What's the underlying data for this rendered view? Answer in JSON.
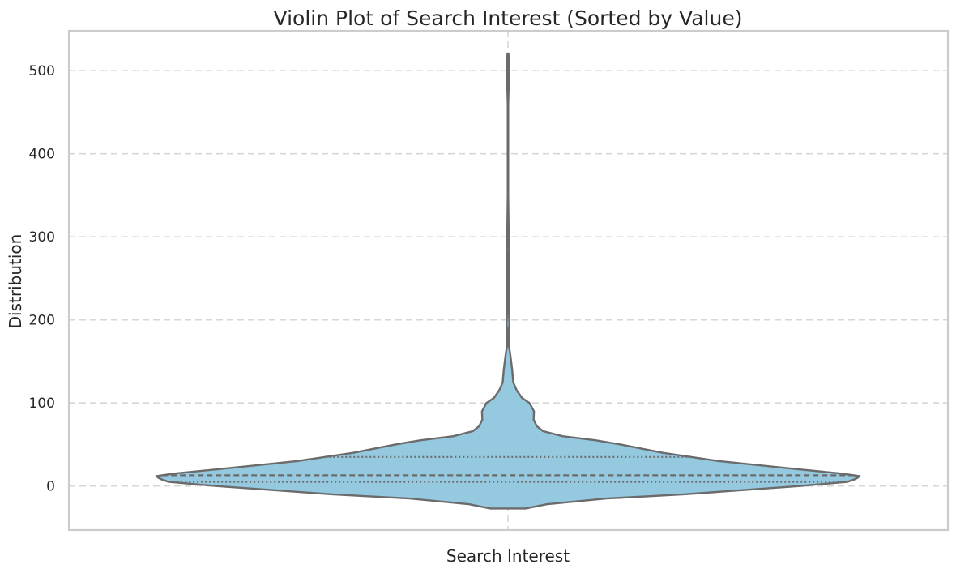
{
  "chart_data": {
    "type": "violin",
    "title": "Violin Plot of Search Interest (Sorted by Value)",
    "xlabel": "Search Interest",
    "ylabel": "Distribution",
    "categories": [
      "Search Interest"
    ],
    "ylim": [
      -53,
      548
    ],
    "yticks": [
      0,
      100,
      200,
      300,
      400,
      500
    ],
    "grid": true,
    "grid_style": "dashed",
    "colors": {
      "fill": "#95c9e0",
      "edge": "#6b6b6b",
      "grid": "#d7d7d7",
      "frame": "#cccccc"
    },
    "quartiles": {
      "q1": 5,
      "median": 13,
      "q3": 35
    },
    "density_halfwidth": [
      [
        -27,
        0.05
      ],
      [
        -22,
        0.11
      ],
      [
        -15,
        0.28
      ],
      [
        -10,
        0.5
      ],
      [
        0,
        0.83
      ],
      [
        5,
        0.965
      ],
      [
        8,
        0.985
      ],
      [
        10,
        0.995
      ],
      [
        12,
        1.0
      ],
      [
        15,
        0.95
      ],
      [
        20,
        0.83
      ],
      [
        30,
        0.6
      ],
      [
        40,
        0.44
      ],
      [
        50,
        0.32
      ],
      [
        55,
        0.25
      ],
      [
        60,
        0.155
      ],
      [
        66,
        0.1
      ],
      [
        72,
        0.082
      ],
      [
        80,
        0.073
      ],
      [
        90,
        0.074
      ],
      [
        100,
        0.061
      ],
      [
        106,
        0.04
      ],
      [
        115,
        0.025
      ],
      [
        125,
        0.015
      ],
      [
        140,
        0.012
      ],
      [
        150,
        0.009
      ],
      [
        160,
        0.006
      ],
      [
        170,
        0.002
      ],
      [
        185,
        0.002
      ],
      [
        195,
        0.004
      ],
      [
        205,
        0.003
      ],
      [
        220,
        0.002
      ],
      [
        260,
        0.002
      ],
      [
        285,
        0.003
      ],
      [
        300,
        0.002
      ],
      [
        320,
        0.0015
      ],
      [
        350,
        0.0008
      ],
      [
        400,
        0.0006
      ],
      [
        460,
        0.0006
      ],
      [
        480,
        0.002
      ],
      [
        495,
        0.0025
      ],
      [
        510,
        0.002
      ],
      [
        520,
        0.0015
      ]
    ]
  }
}
